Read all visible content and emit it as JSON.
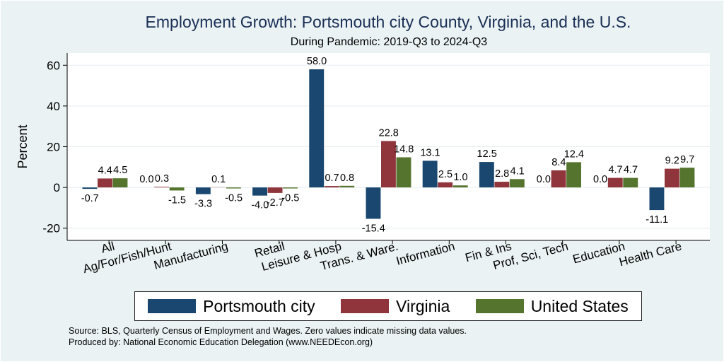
{
  "title": "Employment Growth: Portsmouth city County, Virginia, and the U.S.",
  "subtitle": "During Pandemic: 2019-Q3 to 2024-Q3",
  "notes": {
    "source": "Source: BLS, Quarterly Census of Employment and Wages. Zero values indicate missing data values.",
    "produced": "Produced by: National Economic Education Delegation (www.NEEDEcon.org)"
  },
  "chart_data": {
    "type": "bar",
    "title": "Employment Growth: Portsmouth city County, Virginia, and the U.S.",
    "subtitle": "During Pandemic: 2019-Q3 to 2024-Q3",
    "xlabel": "",
    "ylabel": "Percent",
    "ylim": [
      -26,
      66
    ],
    "yticks": [
      -20,
      0,
      20,
      40,
      60
    ],
    "ytick_labels": [
      "-20",
      "0",
      "20",
      "40",
      "60"
    ],
    "grid": true,
    "legend_position": "bottom",
    "categories": [
      "All",
      "Ag/For/Fish/Hunt",
      "Manufacturing",
      "Retail",
      "Leisure & Hosp",
      "Trans. & Ware.",
      "Information",
      "Fin & Ins",
      "Prof, Sci, Tech",
      "Education",
      "Health Care"
    ],
    "series": [
      {
        "name": "Portsmouth city",
        "color": "#1a476f",
        "values": [
          -0.7,
          0.0,
          -3.3,
          -4.0,
          58.0,
          -15.4,
          13.1,
          12.5,
          0.0,
          0.0,
          -11.1
        ],
        "labels": [
          "-0.7",
          "0.0",
          "-3.3",
          "-4.0",
          "58.0",
          "-15.4",
          "13.1",
          "12.5",
          "0.0",
          "0.0",
          "-11.1"
        ]
      },
      {
        "name": "Virginia",
        "color": "#90353b",
        "values": [
          4.4,
          0.3,
          0.1,
          -2.7,
          0.7,
          22.8,
          2.5,
          2.8,
          8.4,
          4.7,
          9.2
        ],
        "labels": [
          "4.4",
          "0.3",
          "0.1",
          "-2.7",
          "0.7",
          "22.8",
          "2.5",
          "2.8",
          "8.4",
          "4.7",
          "9.2"
        ]
      },
      {
        "name": "United States",
        "color": "#55752f",
        "values": [
          4.5,
          -1.5,
          -0.5,
          -0.5,
          0.8,
          14.8,
          1.0,
          4.1,
          12.4,
          4.7,
          9.7
        ],
        "labels": [
          "4.5",
          "-1.5",
          "-0.5",
          "-0.5",
          "0.8",
          "14.8",
          "1.0",
          "4.1",
          "12.4",
          "4.7",
          "9.7"
        ]
      }
    ]
  }
}
